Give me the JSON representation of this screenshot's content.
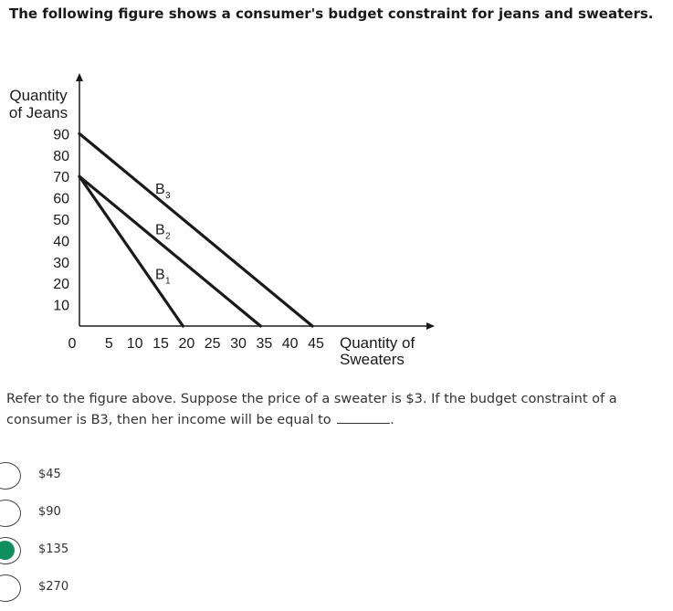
{
  "header": {
    "title": "The following figure shows a consumer's budget constraint for jeans and sweaters."
  },
  "chart_data": {
    "type": "line",
    "ylabel_lines": [
      "Quantity",
      "of Jeans"
    ],
    "xlabel_lines": [
      "Quantity of",
      "Sweaters"
    ],
    "origin_label": "0",
    "x_ticks": [
      5,
      10,
      15,
      20,
      25,
      30,
      35,
      40,
      45
    ],
    "y_ticks": [
      10,
      20,
      30,
      40,
      50,
      60,
      70,
      80,
      90
    ],
    "xlim": [
      0,
      45
    ],
    "ylim": [
      0,
      90
    ],
    "grid": false,
    "series": [
      {
        "name": "B",
        "subscript": "1",
        "points": [
          [
            0,
            70
          ],
          [
            20,
            0
          ]
        ],
        "label_at": [
          15,
          22
        ]
      },
      {
        "name": "B",
        "subscript": "2",
        "points": [
          [
            0,
            70
          ],
          [
            35,
            0
          ]
        ],
        "label_at": [
          15,
          43
        ]
      },
      {
        "name": "B",
        "subscript": "3",
        "points": [
          [
            0,
            90
          ],
          [
            45,
            0
          ]
        ],
        "label_at": [
          15,
          62
        ]
      }
    ],
    "line_color": "#1a1a1a"
  },
  "question": {
    "text": "Refer to the figure above. Suppose the price of a sweater is $3. If the budget constraint of a consumer is B3, then her income will be equal to",
    "suffix": "."
  },
  "options": [
    {
      "label": "$45",
      "selected": false
    },
    {
      "label": "$90",
      "selected": false
    },
    {
      "label": "$135",
      "selected": true
    },
    {
      "label": "$270",
      "selected": false
    }
  ],
  "accent_color": "#0f8f5e"
}
